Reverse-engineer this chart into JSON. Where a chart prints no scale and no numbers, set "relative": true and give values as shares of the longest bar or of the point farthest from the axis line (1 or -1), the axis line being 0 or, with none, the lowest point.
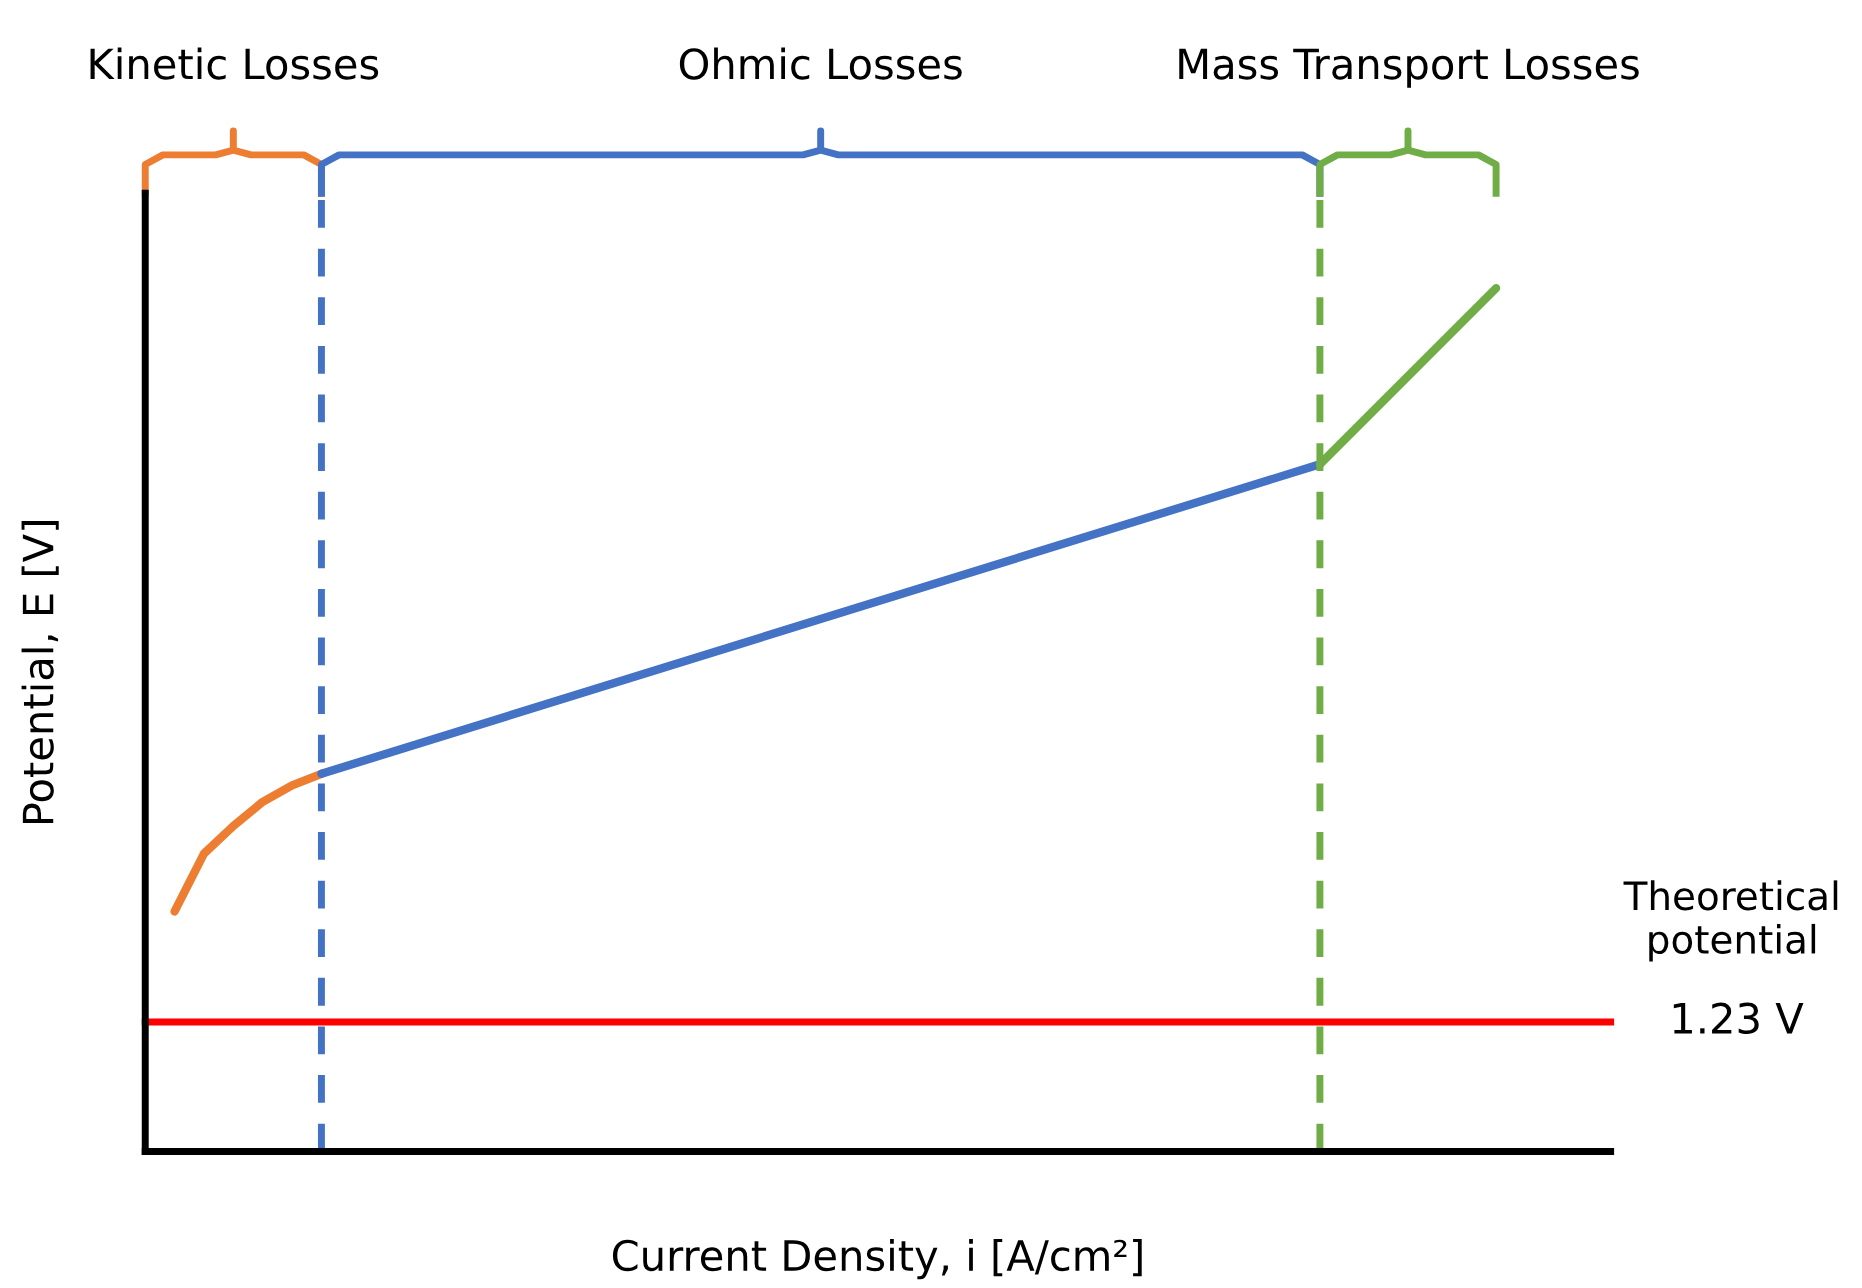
{
  "chart_data": {
    "type": "line",
    "relative": true,
    "xlabel": "Current Density, i [A/cm²]",
    "ylabel": "Potential, E [V]",
    "categories": [
      null,
      null,
      null,
      null,
      null,
      null,
      null,
      null,
      null,
      null,
      null,
      null,
      null,
      null,
      null,
      null,
      null,
      null,
      null,
      null,
      null,
      null,
      null,
      null,
      null,
      null,
      null,
      null,
      null,
      null,
      null,
      null,
      null,
      null,
      null,
      null,
      null,
      null,
      null,
      null,
      null,
      null,
      null,
      null,
      null,
      null,
      null,
      null,
      null,
      null
    ],
    "series": [
      {
        "color": "#ed7d31",
        "values": [
          null,
          0.278,
          0.345,
          0.377,
          0.405,
          0.424,
          0.4375,
          null,
          null,
          null,
          null,
          null,
          null,
          null,
          null,
          null,
          null,
          null,
          null,
          null,
          null,
          null,
          null,
          null,
          null,
          null,
          null,
          null,
          null,
          null,
          null,
          null,
          null,
          null,
          null,
          null,
          null,
          null,
          null,
          null,
          null,
          null,
          null,
          null,
          null,
          null,
          null,
          null,
          null,
          null
        ]
      },
      {
        "color": "#4472c4",
        "values": [
          null,
          null,
          null,
          null,
          null,
          null,
          0.4375,
          null,
          null,
          null,
          null,
          null,
          null,
          null,
          null,
          null,
          null,
          null,
          null,
          null,
          null,
          null,
          null,
          null,
          null,
          null,
          null,
          null,
          null,
          null,
          null,
          null,
          null,
          null,
          null,
          null,
          null,
          null,
          null,
          null,
          0.796,
          null,
          null,
          null,
          null,
          null,
          null,
          null,
          null,
          null
        ]
      },
      {
        "color": "#70ad47",
        "values": [
          null,
          null,
          null,
          null,
          null,
          null,
          null,
          null,
          null,
          null,
          null,
          null,
          null,
          null,
          null,
          null,
          null,
          null,
          null,
          null,
          null,
          null,
          null,
          null,
          null,
          null,
          null,
          null,
          null,
          null,
          null,
          null,
          null,
          null,
          null,
          null,
          null,
          null,
          null,
          null,
          0.796,
          null,
          null,
          null,
          null,
          null,
          1.0,
          null,
          null,
          null
        ]
      }
    ],
    "ref_lines": [
      {
        "axis": "y",
        "value": 0.15,
        "label": "1.23 V",
        "color": "#ff0000",
        "line_style": "solid"
      }
    ],
    "annotations": [
      "Kinetic Losses",
      "Ohmic Losses",
      "Mass Transport Losses",
      "Theoretical potential"
    ]
  }
}
